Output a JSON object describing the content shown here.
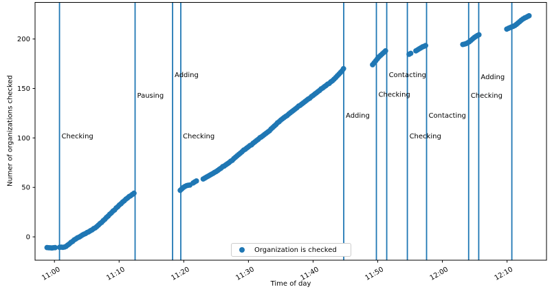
{
  "chart_data": {
    "type": "scatter",
    "title": "",
    "xlabel": "Time of day",
    "ylabel": "Numer of organizations checked",
    "grid": false,
    "legend": {
      "label": "Organization is checked",
      "position": "lower center",
      "marker": "dot"
    },
    "colors": {
      "series": "#1f77b4",
      "event_line": "#1f77b4",
      "text": "#000000",
      "spine": "#000000",
      "legend_border": "#cccccc",
      "background": "#ffffff"
    },
    "x_axis": {
      "unit": "minutes after 11:00",
      "tick_minutes": [
        0,
        10,
        20,
        30,
        40,
        50,
        60,
        70
      ],
      "tick_labels": [
        "11:00",
        "11:10",
        "11:20",
        "11:30",
        "11:40",
        "11:50",
        "12:00",
        "12:10"
      ],
      "tick_rotation_deg": 30,
      "xlim_minutes": [
        -3.0,
        76.1
      ]
    },
    "y_axis": {
      "ticks": [
        0,
        50,
        100,
        150,
        200
      ],
      "tick_labels": [
        "0",
        "50",
        "100",
        "150",
        "200"
      ],
      "ylim": [
        -23.6,
        237.0
      ]
    },
    "events": [
      {
        "t": 0.78,
        "time_approx": "11:01",
        "label": "Checking",
        "label_v": 102
      },
      {
        "t": 12.47,
        "time_approx": "11:12",
        "label": "Pausing",
        "label_v": 143
      },
      {
        "t": 18.27,
        "time_approx": "11:18",
        "label": "Adding",
        "label_v": 164
      },
      {
        "t": 19.54,
        "time_approx": "11:20",
        "label": "Checking",
        "label_v": 102
      },
      {
        "t": 44.74,
        "time_approx": "11:45",
        "label": "Adding",
        "label_v": 123
      },
      {
        "t": 49.79,
        "time_approx": "11:50",
        "label": "Checking",
        "label_v": 144
      },
      {
        "t": 51.39,
        "time_approx": "11:51",
        "label": "Contacting",
        "label_v": 164
      },
      {
        "t": 54.58,
        "time_approx": "11:55",
        "label": "Checking",
        "label_v": 102
      },
      {
        "t": 57.55,
        "time_approx": "11:58",
        "label": "Contacting",
        "label_v": 123
      },
      {
        "t": 64.06,
        "time_approx": "12:04",
        "label": "Checking",
        "label_v": 143
      },
      {
        "t": 65.62,
        "time_approx": "12:06",
        "label": "Adding",
        "label_v": 162
      },
      {
        "t": 70.74,
        "time_approx": "12:11",
        "label": null,
        "label_v": null
      }
    ],
    "series": [
      {
        "name": "Organization is checked",
        "marker": "circle",
        "points_minutes_value": [
          [
            -1.15,
            -10.8
          ],
          [
            -0.9,
            -11
          ],
          [
            -0.65,
            -11.1
          ],
          [
            -0.4,
            -11.2
          ],
          [
            -0.15,
            -11
          ],
          [
            0.1,
            -10.9
          ],
          [
            0.8,
            -10.6
          ],
          [
            1.05,
            -10.4
          ],
          [
            1.3,
            -10.6
          ],
          [
            1.55,
            -10.3
          ],
          [
            1.8,
            -9.6
          ],
          [
            2.05,
            -8.3
          ],
          [
            2.3,
            -7.1
          ],
          [
            2.55,
            -5.6
          ],
          [
            2.8,
            -4.6
          ],
          [
            3.05,
            -3.1
          ],
          [
            3.3,
            -2.1
          ],
          [
            3.55,
            -1
          ],
          [
            3.8,
            -0.3
          ],
          [
            4.05,
            0.7
          ],
          [
            4.3,
            1.8
          ],
          [
            4.55,
            2.6
          ],
          [
            4.8,
            3.3
          ],
          [
            5.05,
            4.4
          ],
          [
            5.3,
            5.1
          ],
          [
            5.55,
            6.2
          ],
          [
            5.8,
            7
          ],
          [
            6.05,
            8.3
          ],
          [
            6.3,
            9.1
          ],
          [
            6.55,
            10.4
          ],
          [
            6.8,
            11.9
          ],
          [
            7.05,
            13.4
          ],
          [
            7.3,
            14.7
          ],
          [
            7.55,
            16.4
          ],
          [
            7.8,
            17.8
          ],
          [
            8.05,
            19.6
          ],
          [
            8.3,
            21
          ],
          [
            8.55,
            22.8
          ],
          [
            8.8,
            24.2
          ],
          [
            9.05,
            26
          ],
          [
            9.3,
            27.2
          ],
          [
            9.55,
            29.2
          ],
          [
            9.8,
            30.5
          ],
          [
            10.05,
            32.2
          ],
          [
            10.3,
            33.5
          ],
          [
            10.55,
            35.2
          ],
          [
            10.8,
            36.5
          ],
          [
            11.05,
            38.1
          ],
          [
            11.3,
            39.3
          ],
          [
            11.55,
            40.8
          ],
          [
            11.8,
            41.6
          ],
          [
            12.05,
            42.9
          ],
          [
            12.3,
            44.1
          ],
          [
            19.45,
            47
          ],
          [
            19.7,
            48.5
          ],
          [
            19.95,
            50
          ],
          [
            20.2,
            51
          ],
          [
            20.45,
            51.8
          ],
          [
            20.7,
            52.2
          ],
          [
            20.95,
            52.4
          ],
          [
            21.45,
            54.5
          ],
          [
            21.7,
            55.5
          ],
          [
            21.95,
            56.5
          ],
          [
            23,
            58.5
          ],
          [
            23.25,
            59.4
          ],
          [
            23.5,
            60.4
          ],
          [
            23.75,
            61.3
          ],
          [
            24,
            62.3
          ],
          [
            24.25,
            63.2
          ],
          [
            24.5,
            64.1
          ],
          [
            24.75,
            65.1
          ],
          [
            25,
            66
          ],
          [
            25.25,
            67.1
          ],
          [
            25.5,
            68.3
          ],
          [
            25.75,
            69.4
          ],
          [
            26,
            70.9
          ],
          [
            26.25,
            71.6
          ],
          [
            26.5,
            72.8
          ],
          [
            26.75,
            73.9
          ],
          [
            27,
            75
          ],
          [
            27.25,
            76.4
          ],
          [
            27.5,
            77.4
          ],
          [
            27.75,
            79.1
          ],
          [
            28,
            80.5
          ],
          [
            28.25,
            81.9
          ],
          [
            28.5,
            83.3
          ],
          [
            28.75,
            84.6
          ],
          [
            29,
            86
          ],
          [
            29.25,
            87.6
          ],
          [
            29.5,
            88.5
          ],
          [
            29.75,
            89.8
          ],
          [
            30,
            91
          ],
          [
            30.25,
            92.3
          ],
          [
            30.5,
            93.2
          ],
          [
            30.75,
            94.8
          ],
          [
            31,
            96
          ],
          [
            31.25,
            97.3
          ],
          [
            31.5,
            98.5
          ],
          [
            31.75,
            100.1
          ],
          [
            32,
            101
          ],
          [
            32.25,
            102.3
          ],
          [
            32.5,
            103.5
          ],
          [
            32.75,
            104.8
          ],
          [
            33,
            106
          ],
          [
            33.25,
            107.2
          ],
          [
            33.5,
            109
          ],
          [
            33.75,
            110.5
          ],
          [
            34,
            112
          ],
          [
            34.25,
            113.5
          ],
          [
            34.5,
            115.3
          ],
          [
            34.75,
            116.5
          ],
          [
            35,
            118
          ],
          [
            35.25,
            119.3
          ],
          [
            35.5,
            120.5
          ],
          [
            35.75,
            121.8
          ],
          [
            36,
            122.7
          ],
          [
            36.25,
            124.3
          ],
          [
            36.5,
            125.5
          ],
          [
            36.75,
            126.8
          ],
          [
            37,
            128
          ],
          [
            37.25,
            129.3
          ],
          [
            37.5,
            130.5
          ],
          [
            37.75,
            132.1
          ],
          [
            38,
            133
          ],
          [
            38.25,
            134.3
          ],
          [
            38.5,
            135.5
          ],
          [
            38.75,
            136.8
          ],
          [
            39,
            138
          ],
          [
            39.25,
            139.3
          ],
          [
            39.5,
            140.2
          ],
          [
            39.75,
            141.8
          ],
          [
            40,
            143
          ],
          [
            40.25,
            144.3
          ],
          [
            40.5,
            145.5
          ],
          [
            40.75,
            146.8
          ],
          [
            41,
            148
          ],
          [
            41.25,
            149.6
          ],
          [
            41.5,
            150.5
          ],
          [
            41.75,
            151.8
          ],
          [
            42,
            153
          ],
          [
            42.25,
            154.3
          ],
          [
            42.5,
            155.2
          ],
          [
            42.75,
            156.7
          ],
          [
            43,
            157.9
          ],
          [
            43.25,
            159.4
          ],
          [
            43.5,
            161.1
          ],
          [
            43.75,
            162.8
          ],
          [
            44,
            164.5
          ],
          [
            44.25,
            166.2
          ],
          [
            44.5,
            167.9
          ],
          [
            44.7,
            170
          ],
          [
            49.2,
            174
          ],
          [
            49.45,
            176
          ],
          [
            49.7,
            178
          ],
          [
            49.95,
            180
          ],
          [
            50.2,
            182
          ],
          [
            50.45,
            183.5
          ],
          [
            50.7,
            185
          ],
          [
            50.95,
            186.5
          ],
          [
            51.2,
            188
          ],
          [
            54.85,
            184.5
          ],
          [
            55.1,
            185.5
          ],
          [
            55.9,
            188
          ],
          [
            56.15,
            189
          ],
          [
            56.4,
            190
          ],
          [
            56.65,
            191
          ],
          [
            56.9,
            192
          ],
          [
            57.15,
            192.6
          ],
          [
            57.4,
            193.4
          ],
          [
            63.15,
            194.5
          ],
          [
            63.4,
            194.8
          ],
          [
            63.65,
            195.3
          ],
          [
            63.9,
            196.1
          ],
          [
            64.15,
            197.1
          ],
          [
            64.4,
            198.5
          ],
          [
            64.65,
            200
          ],
          [
            64.9,
            201.4
          ],
          [
            65.15,
            202.5
          ],
          [
            65.4,
            203.5
          ],
          [
            65.65,
            204.3
          ],
          [
            69.95,
            210
          ],
          [
            70.2,
            210.8
          ],
          [
            70.45,
            211.5
          ],
          [
            70.7,
            212.2
          ],
          [
            70.95,
            212.8
          ],
          [
            71.2,
            213.6
          ],
          [
            71.45,
            214.8
          ],
          [
            71.7,
            216.2
          ],
          [
            71.95,
            217.6
          ],
          [
            72.2,
            219
          ],
          [
            72.45,
            220.2
          ],
          [
            72.7,
            221.2
          ],
          [
            72.95,
            222
          ],
          [
            73.2,
            222.8
          ],
          [
            73.4,
            223.5
          ]
        ]
      }
    ]
  }
}
